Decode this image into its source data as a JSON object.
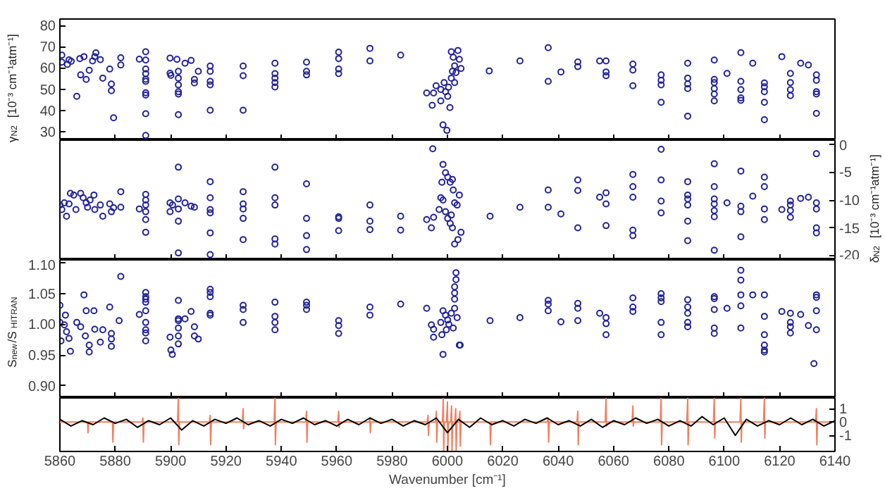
{
  "chart_data": [
    {
      "type": "scatter",
      "ylabel": "γ$_{N2}$ [10⁻³ cm⁻¹atm⁻¹]",
      "xlim": [
        5860,
        6140
      ],
      "xticks": [
        5860,
        5880,
        5900,
        5920,
        5940,
        5960,
        5980,
        6000,
        6020,
        6040,
        6060,
        6080,
        6100,
        6120,
        6140
      ],
      "ylim": [
        26,
        83
      ],
      "yticks": [
        30,
        40,
        50,
        60,
        70,
        80
      ],
      "tick_labels": "y",
      "marker": "circle",
      "series": [
        {
          "color": "#22229a",
          "x": [
            5860.7,
            5860.7,
            5862.7,
            5863.3,
            5864.1,
            5866.1,
            5867.2,
            5867.5,
            5868.7,
            5869.5,
            5870.6,
            5871.8,
            5872.6,
            5873,
            5874.6,
            5875.5,
            5878,
            5878.6,
            5878.6,
            5879.4,
            5882,
            5882,
            5888.7,
            5891,
            5891,
            5891,
            5891,
            5891,
            5891,
            5891,
            5891,
            5891,
            5891,
            5899.8,
            5899.8,
            5900.1,
            5902.3,
            5902.8,
            5902.8,
            5902.8,
            5902.8,
            5902.8,
            5902.8,
            5905.2,
            5907.4,
            5908.6,
            5908.6,
            5910,
            5914.3,
            5914.3,
            5914.3,
            5914.3,
            5914.3,
            5926.2,
            5926.2,
            5926.2,
            5937.7,
            5937.7,
            5937.7,
            5937.7,
            5937.7,
            5949.1,
            5949.1,
            5949.1,
            5960.7,
            5960.7,
            5960.7,
            5960.7,
            5972,
            5972,
            5983.1,
            5992.5,
            5994.5,
            5995,
            5995.9,
            5997.6,
            5998.4,
            5999.8,
            5997.6,
            5998.8,
            5999.3,
            6000.1,
            6000.4,
            6000.9,
            6001.4,
            6001.4,
            6001.8,
            6002.1,
            6002.6,
            6003.1,
            6003.8,
            6004.3,
            6004.9,
            6002.6,
            6015.1,
            6026.2,
            6036.4,
            6036.4,
            6041,
            6047.1,
            6047.1,
            6055,
            6057.3,
            6057.3,
            6057.3,
            6067,
            6067,
            6067,
            6077.2,
            6077.2,
            6077.2,
            6077.2,
            6086.8,
            6086.8,
            6086.8,
            6086.8,
            6086.8,
            6096.4,
            6096.4,
            6096.4,
            6096.4,
            6096.4,
            6096.4,
            6101,
            6106,
            6106,
            6106,
            6106,
            6106,
            6110.3,
            6114.5,
            6114.5,
            6114.5,
            6114.5,
            6114.5,
            6120.8,
            6123.9,
            6123.9,
            6123.9,
            6123.9,
            6127.6,
            6130.4,
            6133.3,
            6133.3,
            6133.3,
            6133.3,
            6133.3
          ],
          "values": [
            66,
            62.7,
            61.6,
            63.8,
            63.1,
            46.6,
            64.4,
            56.7,
            65.3,
            54.6,
            58.9,
            63.3,
            65.3,
            67.1,
            63.9,
            55.2,
            59.5,
            52.4,
            49.3,
            36.5,
            64.8,
            61.4,
            64.1,
            67.6,
            63.7,
            59.5,
            57.3,
            54.7,
            53.7,
            48.3,
            47.2,
            38.4,
            28.2,
            64.6,
            57.5,
            56.5,
            64,
            58.4,
            55.2,
            52,
            48.8,
            47.7,
            38,
            62.2,
            63.5,
            54.6,
            52.9,
            58.4,
            60.9,
            58.4,
            53.7,
            52,
            40.1,
            60.9,
            56.3,
            40.1,
            62.2,
            57.3,
            55.2,
            53.1,
            51,
            62.7,
            58.4,
            56.7,
            67.4,
            64.4,
            59.5,
            57.3,
            69.2,
            63.3,
            66,
            48.2,
            42.4,
            48.2,
            51.6,
            44.5,
            33.2,
            30.6,
            49.9,
            53.1,
            48.8,
            46.6,
            50.9,
            41.3,
            55.2,
            67.6,
            58.4,
            65,
            61,
            57.8,
            68.2,
            64,
            59.7,
            53.1,
            58.6,
            63.3,
            69.5,
            53.7,
            58.1,
            62.8,
            60.6,
            63.3,
            63.3,
            58.1,
            56.3,
            61.8,
            59,
            51.6,
            56.7,
            54.2,
            52,
            43.8,
            62.2,
            55.2,
            52.4,
            50.3,
            37.3,
            63.7,
            54.6,
            53.1,
            50.3,
            47.7,
            44.5,
            57.4,
            67.2,
            53.7,
            49.8,
            45.9,
            44.7,
            62.2,
            52.9,
            51.1,
            48.8,
            43.8,
            35.6,
            65.3,
            57.4,
            53.1,
            49.8,
            47,
            62.2,
            61.4,
            56.7,
            54.2,
            48.8,
            47.7,
            38.6
          ]
        }
      ]
    },
    {
      "type": "scatter",
      "y2label": "δ$_{N2}$ [10⁻³ cm⁻¹atm⁻¹]",
      "xlim": [
        5860,
        6140
      ],
      "xticks": [
        5860,
        5880,
        5900,
        5920,
        5940,
        5960,
        5980,
        6000,
        6020,
        6040,
        6060,
        6080,
        6100,
        6120,
        6140
      ],
      "y2lim": [
        -20.75,
        0.75
      ],
      "y2ticks": [
        0,
        -5,
        -10,
        -15,
        -20
      ],
      "tick_labels": "y",
      "marker": "circle",
      "series": [
        {
          "color": "#22229a",
          "axis": "y2",
          "x": [
            5860,
            5860.7,
            5861.6,
            5862.4,
            5863.3,
            5863.8,
            5865,
            5865.8,
            5867.5,
            5868.4,
            5869.5,
            5870,
            5870.9,
            5872.3,
            5872.6,
            5874.6,
            5875.5,
            5878,
            5878.6,
            5879.4,
            5882,
            5882,
            5888.7,
            5891,
            5891,
            5891,
            5891,
            5891,
            5891,
            5899.8,
            5899.8,
            5900.7,
            5902.8,
            5902.8,
            5902.8,
            5902.8,
            5902.8,
            5905.2,
            5907.4,
            5908.6,
            5914.3,
            5914.3,
            5914.3,
            5914.3,
            5914.3,
            5914.3,
            5926.2,
            5926.2,
            5926.2,
            5926.2,
            5926.2,
            5937.7,
            5937.7,
            5937.7,
            5937.7,
            5937.7,
            5949.1,
            5949.1,
            5949.1,
            5949.1,
            5960.7,
            5960.7,
            5960.7,
            5972,
            5972,
            5972,
            5983.1,
            5983.1,
            5992.5,
            5994.2,
            5995,
            5994.7,
            5998.4,
            5999.3,
            6000.1,
            6001,
            6001.8,
            6002.1,
            5998,
            5997.6,
            5998.4,
            5997,
            5999.3,
            6000.1,
            6001,
            6001.8,
            6002.6,
            6003.8,
            6003.5,
            6004.3,
            6004.9,
            6002.6,
            6001.4,
            6015.4,
            6026.2,
            6036.4,
            6036.4,
            6041,
            6047.1,
            6047.1,
            6047.1,
            6055,
            6057.3,
            6057.3,
            6057.3,
            6067,
            6067,
            6067,
            6067,
            6067,
            6077.2,
            6077.2,
            6077.2,
            6077.2,
            6086.8,
            6086.8,
            6086.8,
            6086.8,
            6086.8,
            6086.8,
            6096.4,
            6096.4,
            6096.4,
            6096.4,
            6096.4,
            6096.4,
            6096.4,
            6101,
            6106,
            6106,
            6106,
            6106,
            6110.3,
            6114.5,
            6114.5,
            6114.5,
            6114.5,
            6120.8,
            6123.9,
            6123.9,
            6123.9,
            6123.9,
            6127.6,
            6130.4,
            6133.3,
            6133.3,
            6133.3,
            6133.3,
            6133.3
          ],
          "values": [
            -10.9,
            -11.7,
            -10.5,
            -12.9,
            -10.7,
            -8.8,
            -9.1,
            -11.7,
            -8.8,
            -9.6,
            -10.5,
            -11.3,
            -10,
            -9.1,
            -11.7,
            -10.9,
            -12.9,
            -10.7,
            -12.1,
            -11.4,
            -8.5,
            -11.3,
            -11.6,
            -9,
            -10,
            -10.9,
            -12.1,
            -13.5,
            -15.8,
            -10.5,
            -12.1,
            -10.9,
            -4.1,
            -9.8,
            -11.6,
            -13.8,
            -19.5,
            -10.5,
            -11.1,
            -11.3,
            -6.7,
            -9.6,
            -11.7,
            -12.3,
            -15.9,
            -19.8,
            -8.5,
            -10.7,
            -11.6,
            -13.3,
            -17.1,
            -4.1,
            -9.6,
            -10.9,
            -17,
            -17.9,
            -7.1,
            -13.3,
            -16.4,
            -18.9,
            -13,
            -13.3,
            -15.5,
            -10.9,
            -13.8,
            -15.3,
            -12.9,
            -15.4,
            -13.5,
            -15,
            -13.1,
            -0.8,
            -3.6,
            -5.1,
            -5.9,
            -6.8,
            -6.3,
            -8.2,
            -6.8,
            -9.6,
            -10,
            -11.7,
            -12.1,
            -13.3,
            -14.2,
            -15,
            -17.9,
            -17.1,
            -10.9,
            -9.1,
            -15.8,
            -10.5,
            -12.7,
            -12.9,
            -11.3,
            -8.2,
            -11.3,
            -12.5,
            -6.4,
            -8.3,
            -15,
            -9.5,
            -8.7,
            -10.7,
            -14.6,
            -5.4,
            -7.6,
            -9.5,
            -15.4,
            -16.4,
            -0.9,
            -6.4,
            -10.2,
            -12.3,
            -6.7,
            -9.1,
            -9.8,
            -10.9,
            -13.8,
            -17.3,
            -3.5,
            -7.6,
            -9.8,
            -10.7,
            -11.9,
            -13,
            -19,
            -10.5,
            -4.8,
            -11.1,
            -12.1,
            -16.6,
            -9.3,
            -5.9,
            -7.6,
            -11.6,
            -13.5,
            -11.7,
            -10.2,
            -10.9,
            -11.9,
            -13.1,
            -9.7,
            -9.5,
            -1.7,
            -10.5,
            -11.6,
            -15,
            -15.9
          ]
        }
      ]
    },
    {
      "type": "scatter",
      "ylabel": "S$_{new}$/S$_{HITRAN}$",
      "xlim": [
        5860,
        6140
      ],
      "xticks": [
        5860,
        5880,
        5900,
        5920,
        5940,
        5960,
        5980,
        6000,
        6020,
        6040,
        6060,
        6080,
        6100,
        6120,
        6140
      ],
      "ylim": [
        0.88,
        1.105
      ],
      "yticks": [
        {
          "value": 0.9,
          "label": "0.90"
        },
        0.95,
        {
          "value": 1.0,
          "label": "1.00"
        },
        1.05,
        {
          "value": 1.1,
          "label": "1.10"
        }
      ],
      "tick_labels": "y",
      "marker": "circle",
      "series": [
        {
          "color": "#22229a",
          "x": [
            5860,
            5860,
            5860.4,
            5861.6,
            5862,
            5862.4,
            5863.3,
            5863.8,
            5866.1,
            5867.5,
            5868.7,
            5869.2,
            5869.5,
            5870.6,
            5870.6,
            5872.3,
            5872.6,
            5874.6,
            5875.5,
            5878,
            5878.6,
            5878.6,
            5878.6,
            5881.4,
            5882,
            5888.7,
            5891,
            5891,
            5891,
            5891,
            5891,
            5891,
            5891,
            5891,
            5891,
            5899.8,
            5900.1,
            5900.6,
            5902.8,
            5902.8,
            5902.8,
            5902.8,
            5902.8,
            5902.8,
            5905.2,
            5907.4,
            5908.6,
            5908.6,
            5910,
            5914.3,
            5914.3,
            5914.3,
            5914.3,
            5914.3,
            5926.2,
            5926.2,
            5926.2,
            5937.7,
            5937.7,
            5937.7,
            5937.7,
            5949.1,
            5949.1,
            5949.1,
            5960.7,
            5960.7,
            5960.7,
            5972,
            5972,
            5983.1,
            5992.5,
            5994.2,
            5995,
            5995,
            5998.4,
            6004.3,
            5998.4,
            5999.3,
            6000.1,
            6000.5,
            6001.4,
            6002.6,
            6003.5,
            6002.1,
            5997.6,
            5999.6,
            5998,
            6003.1,
            6003.1,
            6002.6,
            6002.6,
            6002.6,
            6004.6,
            6015.4,
            6026.2,
            6036.4,
            6036.4,
            6036.4,
            6041,
            6047.1,
            6047.1,
            6047.1,
            6055,
            6057.3,
            6057.3,
            6057.3,
            6067,
            6067,
            6067,
            6077.2,
            6077.2,
            6077.2,
            6077.2,
            6077.2,
            6086.8,
            6086.8,
            6086.8,
            6086.8,
            6086.8,
            6096.4,
            6096.4,
            6096.4,
            6096.4,
            6096.4,
            6101,
            6106,
            6106,
            6106,
            6106,
            6106,
            6110.3,
            6114.5,
            6114.5,
            6114.5,
            6114.5,
            6114.5,
            6114.5,
            6120.8,
            6123.9,
            6123.9,
            6123.9,
            6123.9,
            6127.6,
            6130.4,
            6133.3,
            6133.3,
            6133.3,
            6133.3,
            6132.4
          ],
          "values": [
            1.031,
            1.003,
            0.973,
            0.999,
            1.015,
            0.988,
            0.977,
            0.956,
            1.003,
            0.996,
            1.048,
            0.981,
            1.022,
            0.966,
            0.955,
            1.022,
            0.992,
            0.971,
            0.991,
            1.028,
            0.985,
            0.976,
            0.964,
            1.006,
            1.078,
            1.016,
            1.052,
            1.045,
            1.036,
            1.022,
            1.003,
            0.991,
            0.986,
            0.973,
            1.041,
            0.979,
            0.958,
            0.951,
            1.039,
            1.009,
            1.006,
            0.994,
            0.981,
            0.968,
            1.009,
            1.021,
            0.996,
            0.981,
            0.976,
            1.057,
            1.052,
            1.045,
            1.018,
            1.015,
            1.031,
            1.024,
            1.003,
            1.036,
            1.013,
            1.003,
            0.991,
            1.036,
            1.031,
            1.024,
            1.006,
            0.998,
            0.985,
            1.028,
            1.015,
            1.033,
            1.026,
            0.999,
            0.992,
            0.979,
            0.951,
            0.966,
            1.022,
            1.015,
            1.007,
            1.0,
            1.018,
            1.026,
            1.011,
            0.994,
            1.003,
            0.991,
            0.983,
            1.084,
            1.073,
            1.061,
            1.051,
            1.041,
            0.966,
            1.006,
            1.011,
            1.039,
            1.033,
            1.022,
            1.004,
            1.034,
            1.026,
            1.006,
            1.018,
            1.011,
            1.001,
            0.983,
            1.043,
            1.028,
            1.021,
            1.05,
            1.043,
            1.037,
            1.003,
            0.983,
            1.04,
            1.028,
            1.018,
            1.003,
            0.996,
            1.045,
            1.042,
            1.024,
            0.994,
            0.985,
            1.026,
            1.088,
            1.072,
            1.048,
            1.03,
            0.994,
            1.048,
            1.048,
            1.013,
            0.983,
            0.966,
            0.958,
            0.955,
            1.021,
            1.018,
            1.003,
            0.996,
            0.986,
            1.016,
            0.998,
            1.048,
            1.044,
            1.022,
            0.991,
            0.936
          ]
        }
      ]
    },
    {
      "type": "line",
      "xlabel": "Wavenumber [cm⁻¹]",
      "xlim": [
        5860,
        6140
      ],
      "xticks": [
        5860,
        5880,
        5900,
        5920,
        5940,
        5960,
        5980,
        6000,
        6020,
        6040,
        6060,
        6080,
        6100,
        6120,
        6140
      ],
      "y2lim": [
        -2.2,
        1.8
      ],
      "y2ticks": [
        1,
        0,
        -1
      ],
      "series": [
        {
          "color": "#f08060",
          "axis": "y2",
          "x": [
            5860,
            5869.7,
            5870,
            5870.15,
            5870.4,
            5878.7,
            5879,
            5879.15,
            5879.4,
            5889.7,
            5890,
            5890.15,
            5890.4,
            5902.5,
            5902.8,
            5902.95,
            5903.2,
            5914,
            5914.3,
            5914.45,
            5914.7,
            5925.9,
            5926.2,
            5926.35,
            5926.6,
            5937.4,
            5937.7,
            5937.85,
            5938.1,
            5948.8,
            5949.1,
            5949.25,
            5949.5,
            5960.4,
            5960.7,
            5960.85,
            5961.1,
            5971.7,
            5972,
            5972.15,
            5972.4,
            5992.7,
            5993,
            5993.15,
            5993.4,
            5995.7,
            5996,
            5996.15,
            5996.4,
            5998.2,
            5998.5,
            5998.65,
            5998.9,
            5999.7,
            6000,
            6000.15,
            6000.4,
            6001.2,
            6001.5,
            6001.65,
            6001.9,
            6002.7,
            6003,
            6003.15,
            6003.4,
            6004.2,
            6004.5,
            6004.65,
            6004.9,
            6015.1,
            6015.4,
            6015.55,
            6015.8,
            6036.1,
            6036.4,
            6036.55,
            6036.8,
            6046.8,
            6047.1,
            6047.25,
            6047.5,
            6057,
            6057.3,
            6057.45,
            6057.7,
            6066.7,
            6067,
            6067.15,
            6067.4,
            6076.9,
            6077.2,
            6077.35,
            6077.6,
            6086.5,
            6086.8,
            6086.95,
            6087.2,
            6096.1,
            6096.4,
            6096.55,
            6096.8,
            6105.7,
            6106,
            6106.15,
            6106.4,
            6114.2,
            6114.5,
            6114.65,
            6114.9,
            6133,
            6133.3,
            6133.45,
            6133.7,
            6140
          ],
          "values": [
            0,
            0,
            0,
            -0.8,
            0,
            0,
            0,
            -1.5,
            0,
            0,
            0.3,
            -1.5,
            0,
            0,
            1.8,
            -1.7,
            0,
            0,
            0.5,
            -1.7,
            0,
            0,
            1.0,
            -0.5,
            0,
            0,
            1.8,
            -1.7,
            0,
            0,
            0.8,
            -1.5,
            0,
            0,
            0.8,
            -0.4,
            0,
            0,
            0.3,
            -0.8,
            0,
            0,
            0.5,
            -1.0,
            0,
            0,
            0.8,
            -1.5,
            0,
            0,
            1.8,
            -2.2,
            0,
            0,
            1.5,
            -2.2,
            0,
            0,
            1.2,
            -2.2,
            0,
            0,
            1.0,
            -2.2,
            0,
            0,
            0.8,
            -1.8,
            0,
            0,
            0,
            -1.7,
            0,
            0,
            0.3,
            -1.5,
            0,
            0,
            0.8,
            -1.7,
            0,
            0,
            1.8,
            -0.3,
            0,
            0,
            1.2,
            -0.3,
            0,
            0,
            1.8,
            -1.7,
            0,
            0,
            1.8,
            -1.7,
            0,
            0,
            1.8,
            -1.2,
            0,
            0,
            1.8,
            -1.5,
            0,
            0,
            1.8,
            -1.2,
            0,
            0,
            1.0,
            -1.7,
            0,
            0
          ]
        },
        {
          "color": "#000000",
          "axis": "y2",
          "x": [
            5860,
            5864,
            5868,
            5872,
            5876,
            5880,
            5884,
            5888,
            5892,
            5896,
            5900,
            5904,
            5908,
            5912,
            5916,
            5920,
            5924,
            5928,
            5932,
            5936,
            5940,
            5944,
            5948,
            5952,
            5956,
            5960,
            5964,
            5968,
            5972,
            5976,
            5980,
            5984,
            5988,
            5992,
            5996,
            6000,
            6004,
            6008,
            6012,
            6016,
            6020,
            6024,
            6028,
            6032,
            6036,
            6040,
            6044,
            6048,
            6052,
            6056,
            6060,
            6064,
            6068,
            6072,
            6076,
            6080,
            6084,
            6088,
            6092,
            6096,
            6100,
            6104,
            6108,
            6112,
            6116,
            6120,
            6124,
            6128,
            6132,
            6136,
            6140
          ],
          "values": [
            0.2,
            -0.3,
            0.1,
            -0.2,
            0.3,
            -0.1,
            0.2,
            -0.4,
            0.1,
            -0.2,
            0.3,
            -0.6,
            0.1,
            -0.3,
            0.2,
            -0.1,
            0.3,
            -0.2,
            0.1,
            -0.3,
            0.2,
            -0.1,
            0.3,
            -0.2,
            0.1,
            -0.3,
            0.2,
            -0.2,
            0.3,
            -0.1,
            0.2,
            -0.3,
            0.1,
            -0.2,
            0.3,
            -0.8,
            0.2,
            -0.4,
            0.3,
            -0.2,
            0.1,
            -0.3,
            0.2,
            -0.1,
            0.3,
            -0.2,
            0.1,
            -0.3,
            0.2,
            -0.4,
            0.1,
            -0.2,
            0.3,
            -0.1,
            0.2,
            -0.3,
            0.1,
            -0.3,
            0.4,
            -0.2,
            0.3,
            -1.0,
            0.2,
            -0.3,
            0.1,
            -0.2,
            0.3,
            -0.2,
            0.2,
            -0.3,
            0.1
          ]
        }
      ]
    }
  ]
}
